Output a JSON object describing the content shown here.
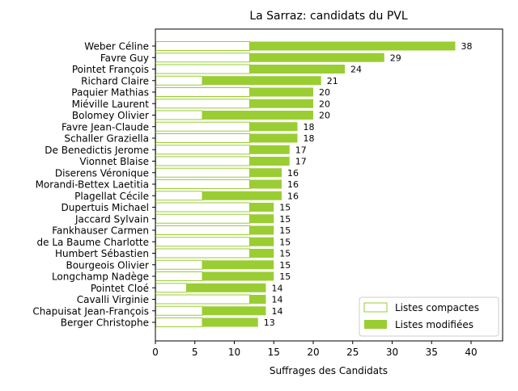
{
  "chart_data": {
    "type": "bar",
    "orientation": "horizontal",
    "stacked": true,
    "title": "La Sarraz: candidats du PVL",
    "xlabel": "Suffrages des Candidats",
    "ylabel": "",
    "xlim": [
      0,
      44
    ],
    "xticks": [
      0,
      5,
      10,
      15,
      20,
      25,
      30,
      35,
      40
    ],
    "legend_position": "bottom-right",
    "grid": false,
    "colors": {
      "compact_edge": "#9acd32",
      "modified_fill": "#9acd32",
      "compact_fill": "#ffffff"
    },
    "categories": [
      "Weber Céline",
      "Favre Guy",
      "Pointet François",
      "Richard Claire",
      "Paquier Mathias",
      "Miéville Laurent",
      "Bolomey Olivier",
      "Favre Jean-Claude",
      "Schaller Graziella",
      "De Benedictis Jerome",
      "Vionnet Blaise",
      "Diserens Véronique",
      "Morandi-Bettex Laetitia",
      "Plagellat Cécile",
      "Dupertuis Michael",
      "Jaccard Sylvain",
      "Fankhauser Carmen",
      "de La Baume Charlotte",
      "Humbert Sébastien",
      "Bourgeois Olivier",
      "Longchamp Nadège",
      "Pointet Cloé",
      "Cavalli Virginie",
      "Chapuisat Jean-François",
      "Berger Christophe"
    ],
    "series": [
      {
        "name": "Listes compactes",
        "values": [
          12,
          12,
          12,
          6,
          12,
          12,
          6,
          12,
          12,
          12,
          12,
          12,
          12,
          6,
          12,
          12,
          12,
          12,
          12,
          6,
          6,
          4,
          12,
          6,
          6
        ]
      },
      {
        "name": "Listes modifiées",
        "values": [
          26,
          17,
          12,
          15,
          8,
          8,
          14,
          6,
          6,
          5,
          5,
          4,
          4,
          10,
          3,
          3,
          3,
          3,
          3,
          9,
          9,
          10,
          2,
          8,
          7
        ]
      }
    ],
    "totals": [
      38,
      29,
      24,
      21,
      20,
      20,
      20,
      18,
      18,
      17,
      17,
      16,
      16,
      16,
      15,
      15,
      15,
      15,
      15,
      15,
      15,
      14,
      14,
      14,
      13
    ]
  }
}
